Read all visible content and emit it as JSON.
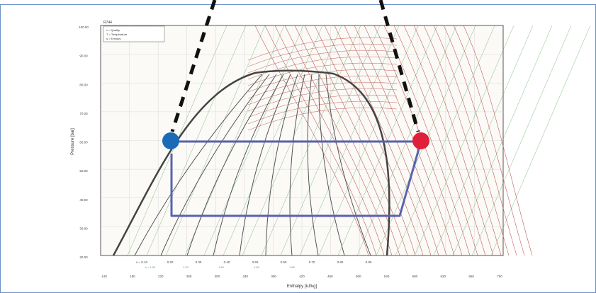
{
  "figure": {
    "legend_title": "R744",
    "legend_lines": [
      "x = Quality",
      "T = Temperature",
      "s = Entropy"
    ],
    "ylabel": "Pressure [bar]",
    "xlabel": "Enthalpy [kJ/kg]",
    "y_ticks": [
      "100.00",
      "90.00",
      "80.00",
      "70.00",
      "60.00",
      "50.00",
      "40.00",
      "30.00",
      "20.00"
    ],
    "x_ticks": [
      "140",
      "180",
      "220",
      "260",
      "300",
      "340",
      "380",
      "420",
      "460",
      "500",
      "540",
      "580",
      "620",
      "660",
      "700"
    ],
    "quality_labels": [
      "x = 0.10",
      "0.20",
      "0.30",
      "0.40",
      "0.50",
      "0.60",
      "0.70",
      "0.80",
      "0.90"
    ],
    "quality_sub_labels": [
      "s = 1.00",
      "1.20",
      "1.40",
      "1.60",
      "1.80"
    ],
    "colors": {
      "frame": "#6a8fc6",
      "dome": "#444444",
      "quality": "#555555",
      "isotherm": "#c0605a",
      "entropy": "#4fa04a",
      "cycle": "#5a62ad",
      "point_left": "#1a6ab7",
      "point_right": "#e0203a",
      "leader": "#111111"
    }
  }
}
